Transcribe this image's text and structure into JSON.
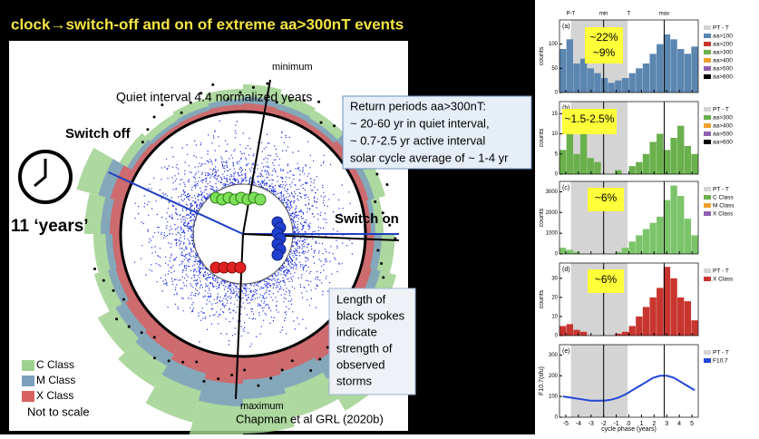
{
  "title": "clock→switch-off and on of extreme aa>300nT events",
  "clock": {
    "quiet": "Quiet interval 4.4 normalized years",
    "minimum": "minimum",
    "maximum": "maximum",
    "switch_off": "Switch off",
    "switch_on": "Switch on",
    "years": "11 ‘years’",
    "legend": [
      "C Class",
      "M Class",
      "X Class"
    ],
    "note": "Not to scale"
  },
  "return_box": [
    "Return periods aa>300nT:",
    "~ 20-60 yr in quiet interval,",
    "~ 0.7-2.5 yr active interval",
    "solar cycle average of ~ 1-4 yr"
  ],
  "spokes_box": [
    "Length of",
    "black spokes",
    "indicate",
    "strength of",
    "observed",
    "storms"
  ],
  "citation": "Chapman et al GRL (2020b)",
  "figure": {
    "top_labels": [
      "P-T",
      "min",
      "T",
      "max"
    ],
    "xlim": [
      -5.5,
      5.5
    ],
    "xticks": [
      -5,
      -4,
      -3,
      -2,
      -1,
      0,
      1,
      2,
      3,
      4,
      5
    ],
    "xlabel": "cycle phase (years)",
    "bins": [
      -5.5,
      -4.95,
      -4.4,
      -3.85,
      -3.3,
      -2.75,
      -2.2,
      -1.65,
      -1.1,
      -0.55,
      0,
      0.55,
      1.1,
      1.65,
      2.2,
      2.75,
      3.3,
      3.85,
      4.4,
      4.95,
      5.5
    ],
    "panels": [
      {
        "label": "(a)",
        "ylabel": "counts",
        "ylim": [
          0,
          150
        ],
        "yticks": [
          0,
          50,
          100
        ],
        "color": "#5b86b0",
        "callouts": [
          "~22%",
          "~9%"
        ],
        "legend": [
          "PT - T",
          "aa>100",
          "aa>200",
          "aa>300",
          "aa>400",
          "aa>500",
          "aa>600"
        ],
        "values": [
          90,
          110,
          60,
          70,
          50,
          40,
          30,
          20,
          25,
          30,
          40,
          50,
          60,
          80,
          100,
          120,
          110,
          90,
          80,
          95
        ]
      },
      {
        "label": "(b)",
        "ylabel": "counts",
        "ylim": [
          0,
          18
        ],
        "yticks": [
          0,
          5,
          10,
          15
        ],
        "color": "#6ab04c",
        "callouts": [
          "~1.5-2.5%"
        ],
        "legend": [
          "PT - T",
          "aa>300",
          "aa>400",
          "aa>500",
          "aa>600"
        ],
        "values": [
          6,
          10,
          5,
          12,
          4,
          3,
          0,
          0,
          1,
          0,
          2,
          3,
          5,
          8,
          10,
          6,
          9,
          12,
          7,
          5
        ]
      },
      {
        "label": "(c)",
        "ylabel": "counts",
        "ylim": [
          0,
          3500
        ],
        "yticks": [
          0,
          1000,
          2000,
          3000
        ],
        "color": "#7cc46a",
        "callouts": [
          "~6%"
        ],
        "legend": [
          "PT - T",
          "C Class",
          "M Class",
          "X Class"
        ],
        "values": [
          300,
          200,
          100,
          0,
          0,
          0,
          0,
          0,
          100,
          300,
          600,
          900,
          1200,
          1500,
          1800,
          2600,
          3300,
          2800,
          1700,
          900
        ]
      },
      {
        "label": "(d)",
        "ylabel": "counts",
        "ylim": [
          0,
          38
        ],
        "yticks": [
          0,
          10,
          20,
          30
        ],
        "color": "#c8352f",
        "callouts": [
          "~6%"
        ],
        "legend": [
          "PT - T",
          "X Class"
        ],
        "values": [
          5,
          6,
          3,
          2,
          0,
          0,
          0,
          0,
          1,
          2,
          5,
          10,
          15,
          20,
          25,
          36,
          30,
          20,
          18,
          8
        ]
      },
      {
        "label": "(e)",
        "ylabel": "F10.7(sfu)",
        "ylim": [
          0,
          350
        ],
        "yticks": [
          0,
          100,
          200,
          300
        ],
        "color": "#2346d6",
        "line": true,
        "legend": [
          "PT - T",
          "F10.7"
        ],
        "values": [
          100,
          95,
          90,
          85,
          80,
          80,
          80,
          85,
          95,
          110,
          130,
          150,
          170,
          190,
          200,
          200,
          190,
          170,
          150,
          130
        ]
      }
    ]
  }
}
